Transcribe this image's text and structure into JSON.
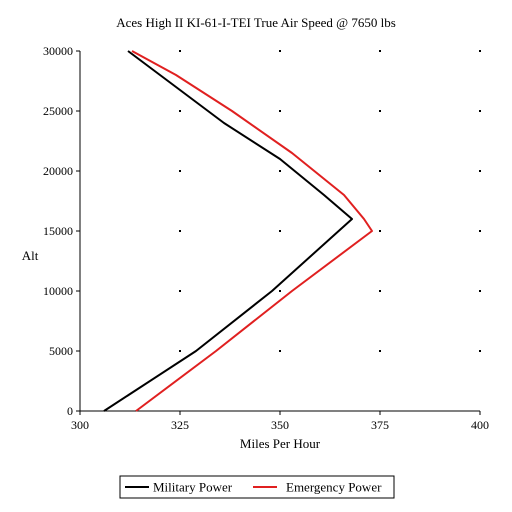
{
  "chart_data": {
    "type": "line",
    "title": "Aces High II KI-61-I-TEI True Air Speed @ 7650 lbs",
    "xlabel": "Miles Per Hour",
    "ylabel": "Alt",
    "xlim": [
      300,
      400
    ],
    "ylim": [
      0,
      30000
    ],
    "x_ticks": [
      "300",
      "325",
      "350",
      "375",
      "400"
    ],
    "y_ticks": [
      "0",
      "5000",
      "10000",
      "15000",
      "20000",
      "25000",
      "30000"
    ],
    "grid": "dots",
    "legend_position": "bottom",
    "series": [
      {
        "name": "Military Power",
        "color": "#000000",
        "points": [
          {
            "x": 306,
            "y": 0
          },
          {
            "x": 329,
            "y": 5000
          },
          {
            "x": 348,
            "y": 10000
          },
          {
            "x": 368,
            "y": 16000
          },
          {
            "x": 361,
            "y": 18000
          },
          {
            "x": 350,
            "y": 21000
          },
          {
            "x": 336,
            "y": 24000
          },
          {
            "x": 322,
            "y": 27500
          },
          {
            "x": 312,
            "y": 30000
          }
        ]
      },
      {
        "name": "Emergency Power",
        "color": "#e02020",
        "points": [
          {
            "x": 314,
            "y": 0
          },
          {
            "x": 334,
            "y": 5000
          },
          {
            "x": 353,
            "y": 10000
          },
          {
            "x": 373,
            "y": 15000
          },
          {
            "x": 371,
            "y": 16000
          },
          {
            "x": 366,
            "y": 18000
          },
          {
            "x": 353,
            "y": 21500
          },
          {
            "x": 338,
            "y": 25000
          },
          {
            "x": 324,
            "y": 28000
          },
          {
            "x": 313,
            "y": 30000
          }
        ]
      }
    ]
  }
}
